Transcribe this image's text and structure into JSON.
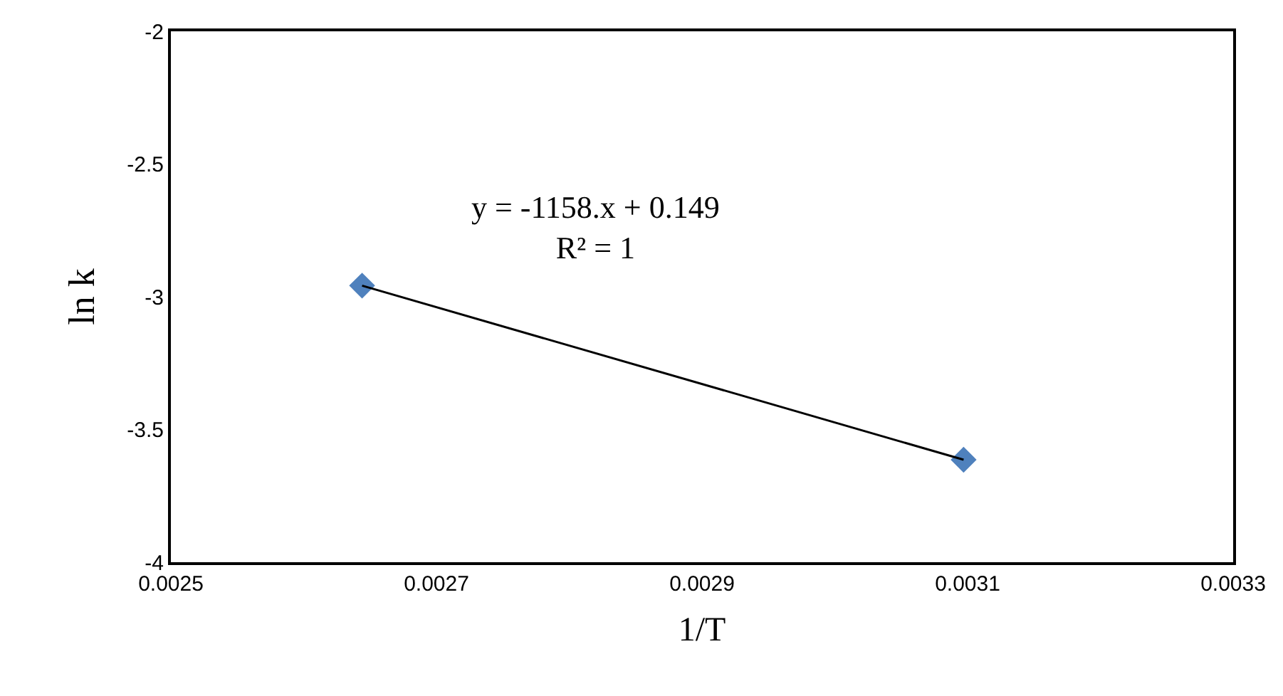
{
  "chart_data": {
    "type": "scatter",
    "xlabel": "1/T",
    "ylabel": "ln k",
    "x": [
      0.002644,
      0.003097
    ],
    "series": [
      {
        "color": "#4f81bd",
        "values": [
          -2.958,
          -3.614
        ],
        "marker": "diamond"
      },
      {
        "type": "line",
        "color": "#000000",
        "x": [
          0.002644,
          0.003097
        ],
        "values": [
          -2.958,
          -3.614
        ],
        "marker": "none",
        "line_style": "solid"
      }
    ],
    "annotations": [
      "y = -1158.x + 0.149\nR² = 1"
    ],
    "xlim": [
      0.0025,
      0.0033
    ],
    "xticks": [
      0.0025,
      0.0027,
      0.0029,
      0.0031,
      0.0033
    ],
    "ylim": [
      -4,
      -2
    ],
    "yticks": [
      -2,
      -2.5,
      -3,
      -3.5,
      -4
    ]
  }
}
